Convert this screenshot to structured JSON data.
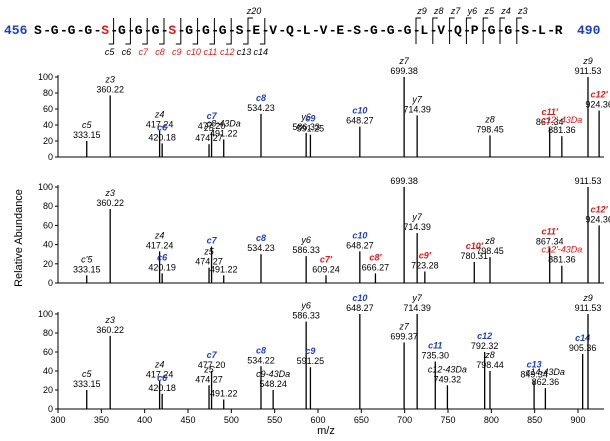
{
  "colors": {
    "black": "#000000",
    "blue": "#1f3fbf",
    "red": "#e01818"
  },
  "sequence": {
    "start": "456",
    "end": "490",
    "residues": [
      "S",
      "G",
      "G",
      "G",
      "S",
      "G",
      "G",
      "G",
      "S",
      "G",
      "G",
      "G",
      "S",
      "E",
      "V",
      "Q",
      "L",
      "V",
      "E",
      "S",
      "G",
      "G",
      "G",
      "L",
      "V",
      "Q",
      "P",
      "G",
      "G",
      "S",
      "L",
      "R"
    ],
    "highlight": [
      4,
      8
    ],
    "c_labels": [
      {
        "after": 4,
        "text": "c5",
        "color": "black"
      },
      {
        "after": 5,
        "text": "c6",
        "color": "black"
      },
      {
        "after": 6,
        "text": "c7",
        "color": "red"
      },
      {
        "after": 7,
        "text": "c8",
        "color": "red"
      },
      {
        "after": 8,
        "text": "c9",
        "color": "red"
      },
      {
        "after": 9,
        "text": "c10",
        "color": "red"
      },
      {
        "after": 10,
        "text": "c11",
        "color": "red"
      },
      {
        "after": 11,
        "text": "c12",
        "color": "red"
      },
      {
        "after": 12,
        "text": "c13",
        "color": "black"
      },
      {
        "after": 13,
        "text": "c14",
        "color": "black"
      }
    ],
    "z_labels": [
      {
        "after": 12,
        "text": "z20"
      },
      {
        "after": 22,
        "text": "z9"
      },
      {
        "after": 23,
        "text": "z8"
      },
      {
        "after": 24,
        "text": "z7"
      },
      {
        "after": 25,
        "text": "y6"
      },
      {
        "after": 26,
        "text": "z5"
      },
      {
        "after": 27,
        "text": "z4"
      },
      {
        "after": 28,
        "text": "z3"
      }
    ]
  },
  "chart_data": {
    "type": "bar",
    "xlabel": "m/z",
    "ylabel": "Relative Abundance",
    "xlim": [
      300,
      930
    ],
    "ylim": [
      0,
      100
    ],
    "xticks": [
      300,
      350,
      400,
      450,
      500,
      550,
      600,
      650,
      700,
      750,
      800,
      850,
      900
    ],
    "yticks": [
      0,
      20,
      40,
      60,
      80,
      100
    ],
    "panels": [
      {
        "peaks": [
          {
            "x": 333.15,
            "y": 20,
            "label": "c5",
            "mz": "333.15",
            "color": "black"
          },
          {
            "x": 360.22,
            "y": 77,
            "label": "z3",
            "mz": "360.22",
            "color": "black"
          },
          {
            "x": 417.24,
            "y": 33,
            "label": "z4",
            "mz": "417.24",
            "color": "black"
          },
          {
            "x": 420.18,
            "y": 17,
            "label": "c6",
            "mz": "420.18",
            "color": "blue"
          },
          {
            "x": 474.27,
            "y": 16,
            "label": "z5",
            "mz": "474.27",
            "color": "black"
          },
          {
            "x": 477.2,
            "y": 31,
            "label": "c7",
            "mz": "477.20",
            "color": "blue"
          },
          {
            "x": 491.22,
            "y": 22,
            "label": "c8-43Da",
            "mz": "491.22",
            "color": "black"
          },
          {
            "x": 534.23,
            "y": 54,
            "label": "c8",
            "mz": "534.23",
            "color": "blue"
          },
          {
            "x": 586.33,
            "y": 30,
            "label": "y6",
            "mz": "586.33",
            "color": "black"
          },
          {
            "x": 591.25,
            "y": 28,
            "label": "c9",
            "mz": "591.25",
            "color": "blue"
          },
          {
            "x": 648.27,
            "y": 38,
            "label": "c10",
            "mz": "648.27",
            "color": "blue"
          },
          {
            "x": 699.38,
            "y": 100,
            "label": "z7",
            "mz": "699.38",
            "color": "black"
          },
          {
            "x": 714.39,
            "y": 52,
            "label": "y7",
            "mz": "714.39",
            "color": "black"
          },
          {
            "x": 798.45,
            "y": 27,
            "label": "z8",
            "mz": "798.45",
            "color": "black"
          },
          {
            "x": 867.34,
            "y": 36,
            "label": "c11'",
            "mz": "867.34",
            "color": "red"
          },
          {
            "x": 881.36,
            "y": 26,
            "label": "c12'-43Da",
            "mz": "881.36",
            "color": "red"
          },
          {
            "x": 911.53,
            "y": 100,
            "label": "z9",
            "mz": "911.53",
            "color": "black"
          },
          {
            "x": 924.36,
            "y": 58,
            "label": "c12'",
            "mz": "924.36",
            "color": "red"
          }
        ]
      },
      {
        "peaks": [
          {
            "x": 333.15,
            "y": 8,
            "label": "c'5",
            "mz": "333.15",
            "color": "black"
          },
          {
            "x": 360.22,
            "y": 77,
            "label": "z3",
            "mz": "360.22",
            "color": "black"
          },
          {
            "x": 417.24,
            "y": 33,
            "label": "z4",
            "mz": "417.24",
            "color": "black"
          },
          {
            "x": 420.19,
            "y": 10,
            "label": "c6",
            "mz": "420.19",
            "color": "blue"
          },
          {
            "x": 474.27,
            "y": 16,
            "label": "z5",
            "mz": "474.27",
            "color": "black"
          },
          {
            "x": 477.2,
            "y": 38,
            "label": "c7",
            "mz": "",
            "color": "blue"
          },
          {
            "x": 491.22,
            "y": 8,
            "label": "",
            "mz": "491.22",
            "color": "black"
          },
          {
            "x": 534.23,
            "y": 30,
            "label": "c8",
            "mz": "534.23",
            "color": "blue"
          },
          {
            "x": 586.33,
            "y": 28,
            "label": "y6",
            "mz": "586.33",
            "color": "black"
          },
          {
            "x": 609.24,
            "y": 8,
            "label": "c7'",
            "mz": "609.24",
            "color": "red"
          },
          {
            "x": 648.27,
            "y": 33,
            "label": "c10",
            "mz": "648.27",
            "color": "blue"
          },
          {
            "x": 666.27,
            "y": 10,
            "label": "c8'",
            "mz": "666.27",
            "color": "red"
          },
          {
            "x": 699.38,
            "y": 100,
            "label": "",
            "mz": "699.38",
            "color": "black"
          },
          {
            "x": 714.39,
            "y": 52,
            "label": "y7",
            "mz": "714.39",
            "color": "black"
          },
          {
            "x": 723.28,
            "y": 12,
            "label": "c9'",
            "mz": "723.28",
            "color": "red"
          },
          {
            "x": 780.31,
            "y": 22,
            "label": "c10'",
            "mz": "780.31",
            "color": "red"
          },
          {
            "x": 798.45,
            "y": 27,
            "label": "z8",
            "mz": "798.45",
            "color": "black"
          },
          {
            "x": 867.34,
            "y": 37,
            "label": "c11'",
            "mz": "867.34",
            "color": "red"
          },
          {
            "x": 881.36,
            "y": 18,
            "label": "c12'-43Da",
            "mz": "881.36",
            "color": "red"
          },
          {
            "x": 911.53,
            "y": 100,
            "label": "",
            "mz": "911.53",
            "color": "black"
          },
          {
            "x": 924.36,
            "y": 60,
            "label": "c12'",
            "mz": "924.36",
            "color": "red"
          }
        ]
      },
      {
        "peaks": [
          {
            "x": 333.15,
            "y": 20,
            "label": "c5",
            "mz": "333.15",
            "color": "black"
          },
          {
            "x": 360.22,
            "y": 77,
            "label": "z3",
            "mz": "360.22",
            "color": "black"
          },
          {
            "x": 417.24,
            "y": 30,
            "label": "z4",
            "mz": "417.24",
            "color": "black"
          },
          {
            "x": 420.18,
            "y": 16,
            "label": "c6",
            "mz": "420.18",
            "color": "blue"
          },
          {
            "x": 474.27,
            "y": 25,
            "label": "z5",
            "mz": "474.27",
            "color": "black"
          },
          {
            "x": 477.2,
            "y": 40,
            "label": "c7",
            "mz": "477.20",
            "color": "blue"
          },
          {
            "x": 491.22,
            "y": 10,
            "label": "",
            "mz": "491.22",
            "color": "black"
          },
          {
            "x": 534.22,
            "y": 45,
            "label": "c8",
            "mz": "534.22",
            "color": "blue"
          },
          {
            "x": 548.24,
            "y": 20,
            "label": "c9-43Da",
            "mz": "548.24",
            "color": "black"
          },
          {
            "x": 586.33,
            "y": 92,
            "label": "y6",
            "mz": "586.33",
            "color": "black"
          },
          {
            "x": 591.25,
            "y": 44,
            "label": "c9",
            "mz": "591.25",
            "color": "blue"
          },
          {
            "x": 648.27,
            "y": 100,
            "label": "c10",
            "mz": "648.27",
            "color": "blue"
          },
          {
            "x": 699.37,
            "y": 70,
            "label": "z7",
            "mz": "699.37",
            "color": "black"
          },
          {
            "x": 714.39,
            "y": 100,
            "label": "y7",
            "mz": "714.39",
            "color": "black"
          },
          {
            "x": 735.3,
            "y": 50,
            "label": "c11",
            "mz": "735.30",
            "color": "blue"
          },
          {
            "x": 749.32,
            "y": 25,
            "label": "c12-43Da",
            "mz": "749.32",
            "color": "black"
          },
          {
            "x": 792.32,
            "y": 60,
            "label": "c12",
            "mz": "792.32",
            "color": "blue"
          },
          {
            "x": 798.44,
            "y": 40,
            "label": "z8",
            "mz": "798.44",
            "color": "black"
          },
          {
            "x": 849.34,
            "y": 30,
            "label": "c13",
            "mz": "849.34",
            "color": "blue"
          },
          {
            "x": 862.36,
            "y": 22,
            "label": "c14-43Da",
            "mz": "862.36",
            "color": "black"
          },
          {
            "x": 905.36,
            "y": 58,
            "label": "c14",
            "mz": "905.36",
            "color": "blue"
          },
          {
            "x": 911.53,
            "y": 100,
            "label": "z9",
            "mz": "911.53",
            "color": "black"
          }
        ]
      }
    ]
  }
}
